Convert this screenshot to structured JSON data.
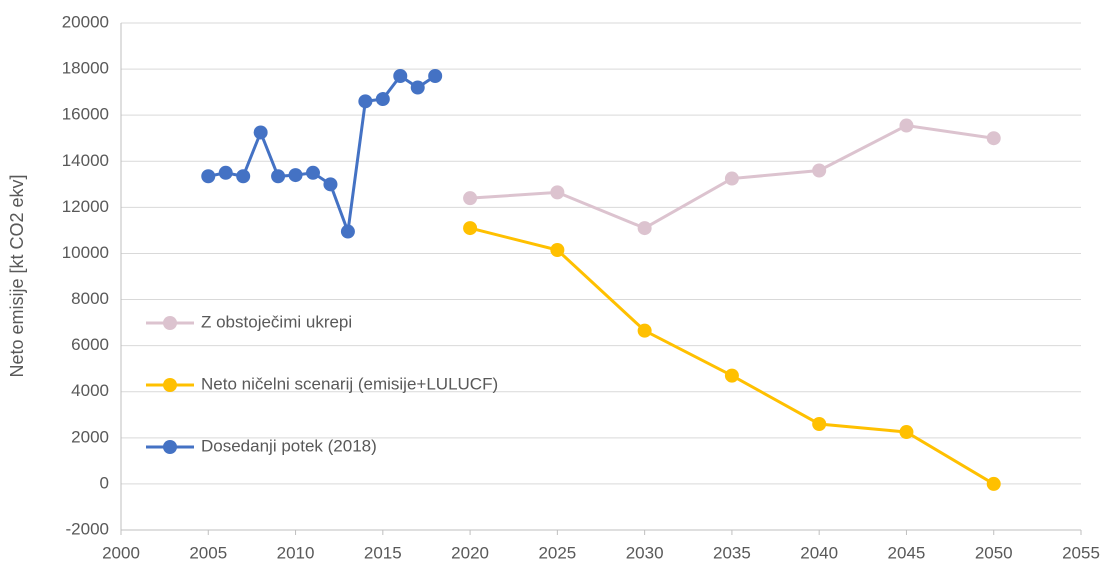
{
  "chart_data": {
    "type": "line",
    "ylabel": "Neto emisije [kt CO2 ekv]",
    "xlim": [
      2000,
      2055
    ],
    "xticks": [
      2000,
      2005,
      2010,
      2015,
      2020,
      2025,
      2030,
      2035,
      2040,
      2045,
      2050,
      2055
    ],
    "ylim": [
      -2000,
      20000
    ],
    "yticks": [
      -2000,
      0,
      2000,
      4000,
      6000,
      8000,
      10000,
      12000,
      14000,
      16000,
      18000,
      20000
    ],
    "grid": true,
    "legend": "left",
    "series": [
      {
        "name": "Z obstoječimi ukrepi",
        "color": "#dcc3cf",
        "x": [
          2020,
          2025,
          2030,
          2035,
          2040,
          2045,
          2050
        ],
        "values": [
          12400,
          12650,
          11100,
          13250,
          13600,
          15550,
          15000
        ]
      },
      {
        "name": "Neto ničelni scenarij (emisije+LULUCF)",
        "color": "#ffc000",
        "x": [
          2020,
          2025,
          2030,
          2035,
          2040,
          2045,
          2050
        ],
        "values": [
          11100,
          10150,
          6650,
          4700,
          2600,
          2250,
          0
        ]
      },
      {
        "name": "Dosedanji potek (2018)",
        "color": "#4472c4",
        "x": [
          2005,
          2006,
          2007,
          2008,
          2009,
          2010,
          2011,
          2012,
          2013,
          2014,
          2015,
          2016,
          2017,
          2018
        ],
        "values": [
          13350,
          13500,
          13350,
          15250,
          13350,
          13400,
          13500,
          13000,
          10950,
          16600,
          16700,
          17700,
          17200,
          17700
        ]
      }
    ]
  }
}
